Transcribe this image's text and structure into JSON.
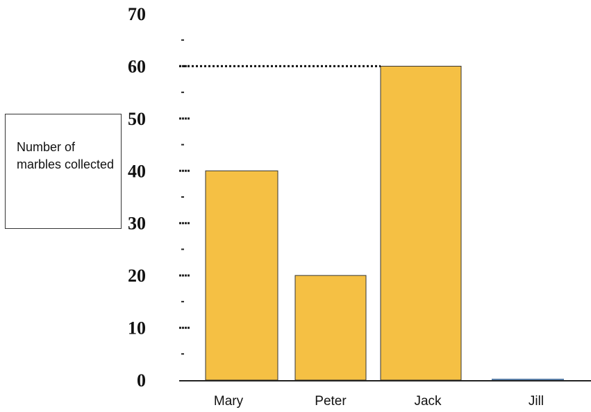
{
  "chart_data": {
    "type": "bar",
    "categories": [
      "Mary",
      "Peter",
      "Jack",
      "Jill"
    ],
    "values": [
      40,
      20,
      60,
      0
    ],
    "ylabel": "Number of marbles collected",
    "xlabel": "",
    "title": "",
    "ylim": [
      0,
      70
    ],
    "yticks": [
      0,
      10,
      20,
      30,
      40,
      50,
      60,
      70
    ],
    "reference_line": {
      "value": 60,
      "style": "dotted"
    },
    "grid": false,
    "colors": {
      "bar": "#f5c044",
      "bar_border": "#333333",
      "axis": "#222222"
    }
  }
}
